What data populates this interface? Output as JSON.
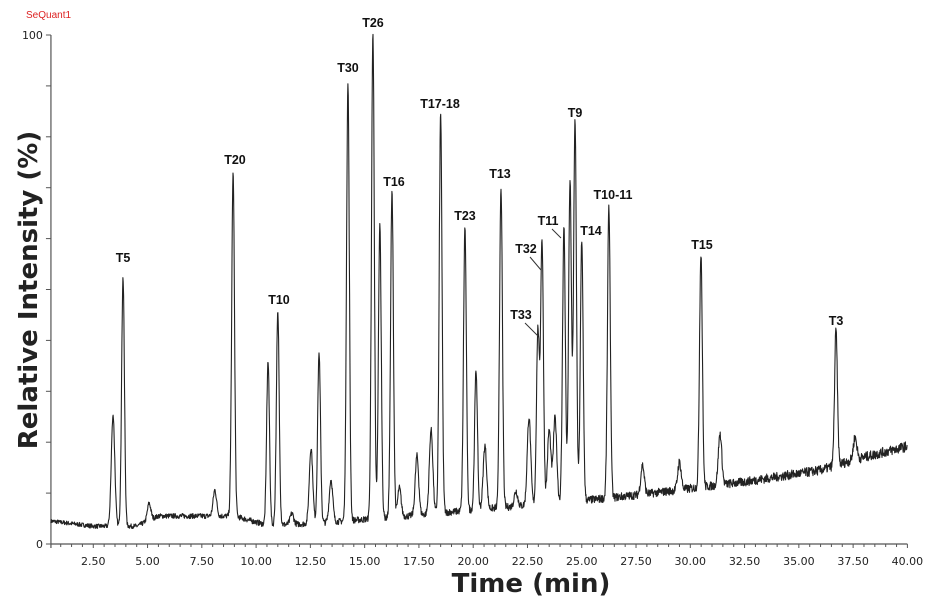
{
  "brand": "SeQuant1",
  "chart_data": {
    "type": "line",
    "title": "",
    "xlabel": "Time (min)",
    "ylabel": "Relative Intensity (%)",
    "xlim": [
      0.55,
      40.0
    ],
    "ylim": [
      0,
      100
    ],
    "x_ticks": [
      "2.50",
      "5.00",
      "7.50",
      "10.00",
      "12.50",
      "15.00",
      "17.50",
      "20.00",
      "22.50",
      "25.00",
      "27.50",
      "30.00",
      "32.50",
      "35.00",
      "37.50",
      "40.00"
    ],
    "x_tick_values": [
      2.5,
      5,
      7.5,
      10,
      12.5,
      15,
      17.5,
      20,
      22.5,
      25,
      27.5,
      30,
      32.5,
      35,
      37.5,
      40
    ],
    "y_tick_labels": [
      "0",
      "100"
    ],
    "y_minor_step": 10,
    "grid": false,
    "baseline": [
      [
        0.55,
        4.5
      ],
      [
        2.5,
        3.5
      ],
      [
        4.5,
        3.5
      ],
      [
        5.5,
        5.5
      ],
      [
        9,
        5.5
      ],
      [
        10.5,
        3.7
      ],
      [
        12.5,
        4.0
      ],
      [
        17,
        5.5
      ],
      [
        20,
        6.7
      ],
      [
        25,
        8.5
      ],
      [
        27.5,
        9.6
      ],
      [
        32.5,
        12.2
      ],
      [
        36,
        14.5
      ],
      [
        37.5,
        16.5
      ],
      [
        40,
        19.2
      ]
    ],
    "peaks": [
      {
        "t": 3.41,
        "y": 25.3,
        "label": ""
      },
      {
        "t": 3.87,
        "y": 52.3,
        "label": "T5"
      },
      {
        "t": 5.07,
        "y": 8.0,
        "label": ""
      },
      {
        "t": 8.1,
        "y": 10.6,
        "label": ""
      },
      {
        "t": 8.94,
        "y": 72.9,
        "label": "T20"
      },
      {
        "t": 10.55,
        "y": 35.8,
        "label": ""
      },
      {
        "t": 11.0,
        "y": 45.4,
        "label": "T10"
      },
      {
        "t": 11.65,
        "y": 6.0,
        "label": ""
      },
      {
        "t": 12.53,
        "y": 18.9,
        "label": ""
      },
      {
        "t": 12.9,
        "y": 37.5,
        "label": ""
      },
      {
        "t": 13.45,
        "y": 12.6,
        "label": ""
      },
      {
        "t": 14.23,
        "y": 90.2,
        "label": "T30"
      },
      {
        "t": 15.38,
        "y": 100.0,
        "label": "T26"
      },
      {
        "t": 15.7,
        "y": 62.5,
        "label": ""
      },
      {
        "t": 16.26,
        "y": 69.2,
        "label": "T16"
      },
      {
        "t": 16.6,
        "y": 11.0,
        "label": ""
      },
      {
        "t": 17.41,
        "y": 17.3,
        "label": ""
      },
      {
        "t": 18.06,
        "y": 22.4,
        "label": ""
      },
      {
        "t": 18.5,
        "y": 84.5,
        "label": "T17-18"
      },
      {
        "t": 19.62,
        "y": 62.1,
        "label": "T23"
      },
      {
        "t": 20.13,
        "y": 34.2,
        "label": ""
      },
      {
        "t": 20.54,
        "y": 19.3,
        "label": ""
      },
      {
        "t": 21.28,
        "y": 70.3,
        "label": "T13"
      },
      {
        "t": 21.97,
        "y": 10.4,
        "label": ""
      },
      {
        "t": 22.57,
        "y": 25.0,
        "label": ""
      },
      {
        "t": 22.98,
        "y": 42.0,
        "label": "T33"
      },
      {
        "t": 23.17,
        "y": 59.7,
        "label": "T32"
      },
      {
        "t": 23.5,
        "y": 22.4,
        "label": ""
      },
      {
        "t": 23.77,
        "y": 24.8,
        "label": ""
      },
      {
        "t": 24.18,
        "y": 62.1,
        "label": "T11"
      },
      {
        "t": 24.46,
        "y": 71.1,
        "label": ""
      },
      {
        "t": 24.69,
        "y": 82.9,
        "label": "T9"
      },
      {
        "t": 25.0,
        "y": 59.3,
        "label": "T14"
      },
      {
        "t": 26.25,
        "y": 66.2,
        "label": "T10-11"
      },
      {
        "t": 27.8,
        "y": 15.5,
        "label": ""
      },
      {
        "t": 29.5,
        "y": 16.1,
        "label": ""
      },
      {
        "t": 30.49,
        "y": 57.2,
        "label": "T15"
      },
      {
        "t": 31.37,
        "y": 21.6,
        "label": ""
      },
      {
        "t": 36.71,
        "y": 42.0,
        "label": "T3"
      },
      {
        "t": 37.59,
        "y": 21.0,
        "label": ""
      }
    ]
  }
}
